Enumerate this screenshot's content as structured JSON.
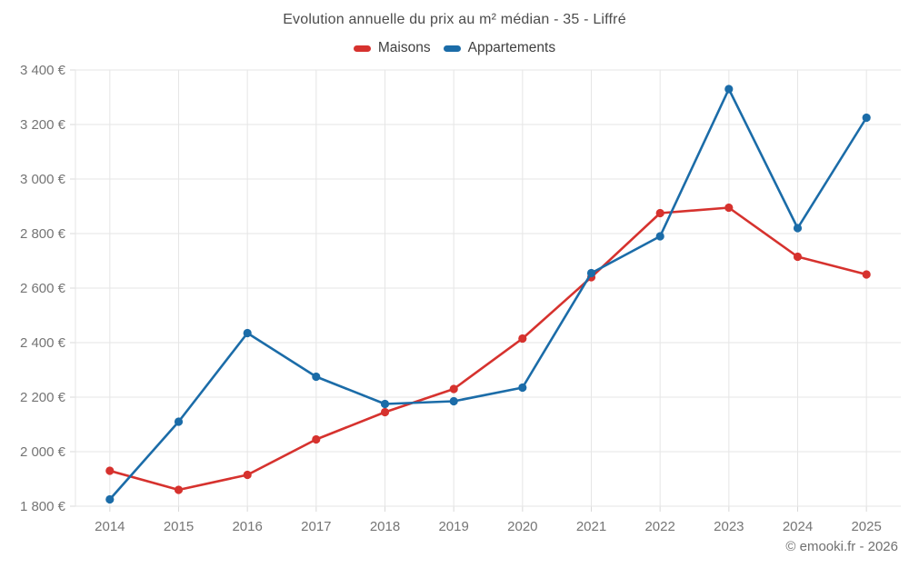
{
  "page": {
    "title": "Evolution annuelle du prix au m² médian - 35 - Liffré",
    "footer": "© emooki.fr - 2026"
  },
  "chart_data": {
    "type": "line",
    "title": "Evolution annuelle du prix au m² médian - 35 - Liffré",
    "categories": [
      "2014",
      "2015",
      "2016",
      "2017",
      "2018",
      "2019",
      "2020",
      "2021",
      "2022",
      "2023",
      "2024",
      "2025"
    ],
    "series": [
      {
        "name": "Maisons",
        "color": "#d6322e",
        "values": [
          1930,
          1860,
          1915,
          2045,
          2145,
          2230,
          2415,
          2640,
          2875,
          2895,
          2715,
          2650
        ]
      },
      {
        "name": "Appartements",
        "color": "#1b6ca8",
        "values": [
          1825,
          2110,
          2435,
          2275,
          2175,
          2185,
          2235,
          2655,
          2790,
          3330,
          2820,
          3225
        ]
      }
    ],
    "xlabel": "",
    "ylabel": "",
    "ylim": [
      1800,
      3400
    ],
    "y_tick_step": 200,
    "y_tick_labels": [
      "1 800 €",
      "2 000 €",
      "2 200 €",
      "2 400 €",
      "2 600 €",
      "2 800 €",
      "3 000 €",
      "3 200 €",
      "3 400 €"
    ],
    "currency_suffix": " €",
    "grid": true,
    "legend_position": "top"
  },
  "colors": {
    "grid": "#e6e6e6",
    "axis": "#dcdcdc",
    "tick": "#d9d9d9",
    "axis_text": "#757575",
    "background": "#ffffff"
  }
}
